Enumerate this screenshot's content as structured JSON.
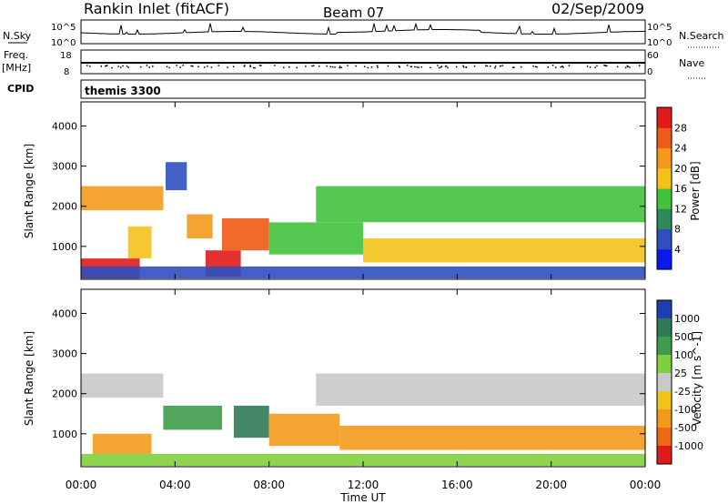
{
  "header": {
    "station": "Rankin Inlet (fitACF)",
    "beam": "Beam 07",
    "date": "02/Sep/2009"
  },
  "top_panel": {
    "left_label": "N.Sky",
    "right_label": "N.Search",
    "tick_high": "10^5",
    "tick_low": "10^0"
  },
  "freq_panel": {
    "left_label_1": "Freq.",
    "left_label_2": "[MHz]",
    "left_ticks": [
      "18",
      "8"
    ],
    "right_label": "Nave",
    "right_ticks": [
      "60",
      "0"
    ]
  },
  "cpid_panel": {
    "label": "CPID",
    "program": "themis 3300"
  },
  "colors": {
    "power_scale": [
      "#0a1aee",
      "#2e4fbf",
      "#2e8a5a",
      "#41c23c",
      "#f2c21a",
      "#f39a1a",
      "#ef5a14",
      "#e01a1a"
    ],
    "velocity_scale": [
      "#1f3fb0",
      "#2f7a55",
      "#3f9c4a",
      "#7fd03c",
      "#c9c9c6",
      "#f2c21a",
      "#f39a1a",
      "#ef6a14",
      "#e01a1a"
    ]
  },
  "chart_data": [
    {
      "type": "heatmap",
      "name": "power",
      "ylabel": "Slant Range [km]",
      "yticks": [
        "4000",
        "3000",
        "2000",
        "1000"
      ],
      "ylim": [
        180,
        4600
      ],
      "colorbar_label": "Power [dB]",
      "colorbar_ticks": [
        "28",
        "24",
        "20",
        "16",
        "12",
        "8",
        "4"
      ],
      "colorbar_range": [
        0,
        32
      ],
      "regions": [
        {
          "t": [
            0.0,
            2.5
          ],
          "range": [
            200,
            700
          ],
          "level": 30
        },
        {
          "t": [
            0.0,
            3.5
          ],
          "range": [
            1900,
            2500
          ],
          "level": 20
        },
        {
          "t": [
            2.0,
            3.0
          ],
          "range": [
            700,
            1500
          ],
          "level": 18
        },
        {
          "t": [
            3.6,
            4.5
          ],
          "range": [
            2400,
            3100
          ],
          "level": 6
        },
        {
          "t": [
            4.5,
            5.6
          ],
          "range": [
            1200,
            1800
          ],
          "level": 22
        },
        {
          "t": [
            5.3,
            6.8
          ],
          "range": [
            250,
            900
          ],
          "level": 28
        },
        {
          "t": [
            6.0,
            8.0
          ],
          "range": [
            900,
            1700
          ],
          "level": 26
        },
        {
          "t": [
            8.0,
            12.0
          ],
          "range": [
            800,
            1600
          ],
          "level": 12
        },
        {
          "t": [
            10.0,
            24.0
          ],
          "range": [
            1600,
            2500
          ],
          "level": 14
        },
        {
          "t": [
            12.0,
            24.0
          ],
          "range": [
            600,
            1200
          ],
          "level": 18
        },
        {
          "t": [
            0.0,
            24.0
          ],
          "range": [
            200,
            500
          ],
          "level": 6
        }
      ]
    },
    {
      "type": "heatmap",
      "name": "velocity",
      "ylabel": "Slant Range [km]",
      "yticks": [
        "4000",
        "3000",
        "2000",
        "1000"
      ],
      "ylim": [
        180,
        4600
      ],
      "colorbar_label": "Velocity [m s^-1]",
      "colorbar_ticks": [
        "1000",
        "500",
        "100",
        "25",
        "-25",
        "-100",
        "-500",
        "-1000"
      ],
      "xlabel": "Time UT",
      "xticks": [
        "00:00",
        "04:00",
        "08:00",
        "12:00",
        "16:00",
        "20:00",
        "00:00"
      ],
      "xlim": [
        0,
        24
      ],
      "regions": [
        {
          "t": [
            0.0,
            3.5
          ],
          "range": [
            1900,
            2500
          ],
          "level": 0
        },
        {
          "t": [
            0.5,
            3.0
          ],
          "range": [
            500,
            1000
          ],
          "level": -200
        },
        {
          "t": [
            3.5,
            6.0
          ],
          "range": [
            1100,
            1700
          ],
          "level": 150
        },
        {
          "t": [
            6.5,
            8.0
          ],
          "range": [
            900,
            1700
          ],
          "level": 700
        },
        {
          "t": [
            8.0,
            11.0
          ],
          "range": [
            700,
            1500
          ],
          "level": -200
        },
        {
          "t": [
            10.0,
            24.0
          ],
          "range": [
            1700,
            2500
          ],
          "level": 0
        },
        {
          "t": [
            11.0,
            24.0
          ],
          "range": [
            600,
            1200
          ],
          "level": -250
        },
        {
          "t": [
            0.0,
            24.0
          ],
          "range": [
            200,
            500
          ],
          "level": 50
        }
      ]
    }
  ]
}
